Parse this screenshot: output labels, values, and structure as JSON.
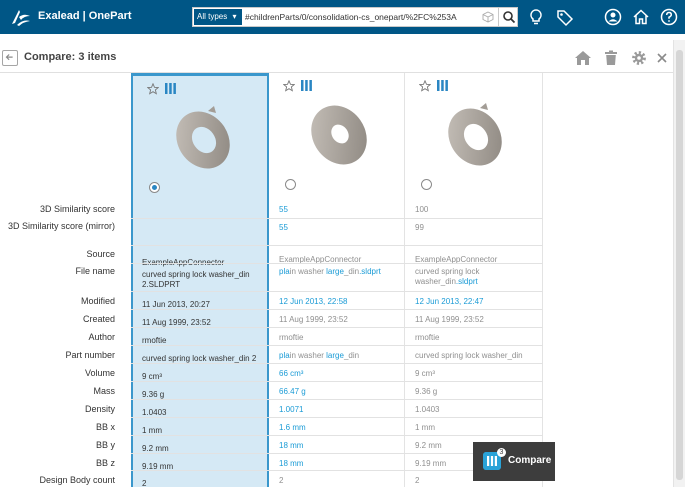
{
  "app": {
    "title": "Exalead | OnePart"
  },
  "search": {
    "type_filter": "All types",
    "query": "#childrenParts/0/consolidation-cs_onepart/%2FC%253A"
  },
  "compare": {
    "title": "Compare: 3 items",
    "button_label": "Compare",
    "badge_count": "3"
  },
  "row_labels": [
    "3D Similarity score",
    "3D Similarity score (mirror)",
    "Source",
    "File name",
    "Modified",
    "Created",
    "Author",
    "Part number",
    "Volume",
    "Mass",
    "Density",
    "BB x",
    "BB y",
    "BB z",
    "Design Body count"
  ],
  "items": [
    {
      "selected": true,
      "values": {
        "sim": "",
        "sim_mirror": "",
        "source": "ExampleAppConnector",
        "file_line1": "curved spring lock washer_din",
        "file_line2": "2.SLDPRT",
        "modified": "11 Jun 2013, 20:27",
        "created": "11 Aug 1999, 23:52",
        "author": "rmoftie",
        "part_number": "curved spring lock washer_din 2",
        "volume": "9 cm³",
        "mass": "9.36 g",
        "density": "1.0403",
        "bbx": "1 mm",
        "bby": "9.2 mm",
        "bbz": "9.19 mm",
        "design_body_count": "2"
      }
    },
    {
      "selected": false,
      "values": {
        "sim": "55",
        "sim_mirror": "55",
        "source": "ExampleAppConnector",
        "file_a": "pla",
        "file_b": "in washer ",
        "file_c": "large",
        "file_d": "_din",
        "file_e": ".sldprt",
        "modified": "12 Jun 2013, 22:58",
        "created": "11 Aug 1999, 23:52",
        "author": "rmoftie",
        "pn_a": "pla",
        "pn_b": "in washer ",
        "pn_c": "large",
        "pn_d": "_din",
        "volume": "66 cm³",
        "mass": "66.47 g",
        "density": "1.0071",
        "bbx": "1.6 mm",
        "bby": "18 mm",
        "bbz": "18 mm",
        "design_body_count": "2"
      }
    },
    {
      "selected": false,
      "values": {
        "sim": "100",
        "sim_mirror": "99",
        "source": "ExampleAppConnector",
        "file_line1": "curved spring lock",
        "file_line2a": "washer_din",
        "file_line2b": ".sldprt",
        "modified": "12 Jun 2013, 22:47",
        "created": "11 Aug 1999, 23:52",
        "author": "rmoftie",
        "part_number": "curved spring lock washer_din",
        "volume": "9 cm³",
        "mass": "9.36 g",
        "density": "1.0403",
        "bbx": "1 mm",
        "bby": "9.2 mm",
        "bbz": "9.19 mm",
        "design_body_count": "2"
      }
    }
  ],
  "colors": {
    "topbar": "#005686",
    "highlight": "#1a9bd6",
    "selected_column": "#d5e9f5"
  }
}
